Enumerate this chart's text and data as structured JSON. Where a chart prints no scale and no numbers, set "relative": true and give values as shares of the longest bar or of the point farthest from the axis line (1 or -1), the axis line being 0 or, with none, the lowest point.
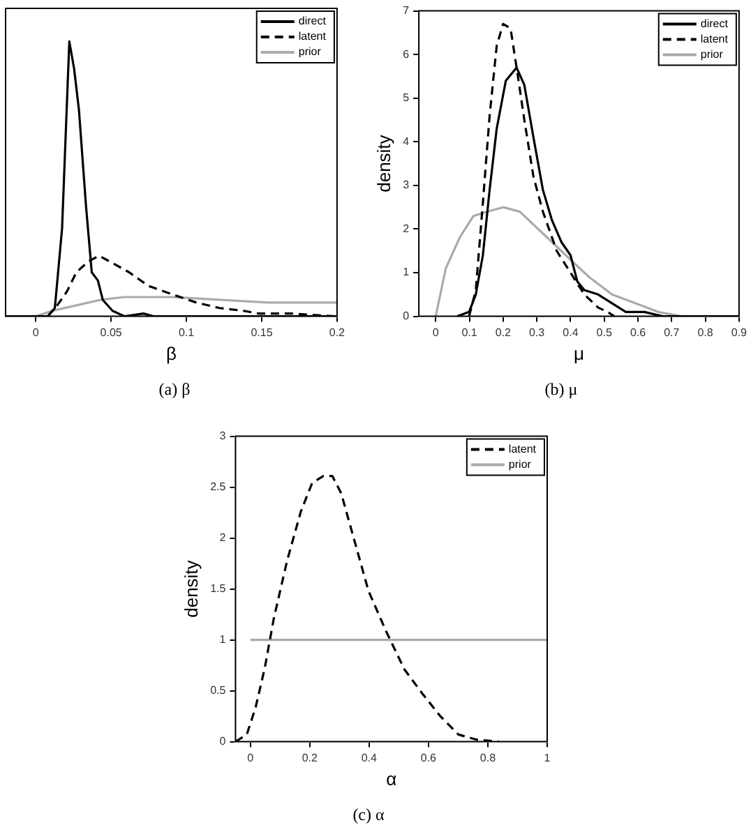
{
  "chart_data": [
    {
      "type": "line",
      "relative": true,
      "xlabel": "β",
      "annotations": [
        "(a) β"
      ],
      "legend": "top right",
      "marker": "none",
      "xlim": [
        -0.02,
        0.2
      ],
      "xticks": [
        0,
        0.05,
        0.1,
        0.15,
        0.2
      ],
      "series": [
        {
          "name": "direct",
          "color": "#000000",
          "line_style": "solid",
          "x": [
            -0.02,
            0.008,
            0.0127,
            0.0175,
            0.0223,
            0.0255,
            0.0287,
            0.0334,
            0.0372,
            0.0413,
            0.0445,
            0.051,
            0.059,
            0.0716,
            0.078,
            0.2
          ],
          "values": [
            0,
            0,
            0.03,
            0.32,
            1,
            0.9,
            0.75,
            0.4,
            0.16,
            0.13,
            0.06,
            0.02,
            0,
            0.01,
            0,
            0
          ]
        },
        {
          "name": "latent",
          "color": "#000000",
          "line_style": "dashed",
          "x": [
            0.008,
            0.0143,
            0.0207,
            0.027,
            0.035,
            0.042,
            0.049,
            0.062,
            0.075,
            0.0906,
            0.1066,
            0.122,
            0.138,
            0.148,
            0.17,
            0.199
          ],
          "values": [
            0,
            0.04,
            0.09,
            0.16,
            0.2,
            0.22,
            0.2,
            0.16,
            0.11,
            0.08,
            0.05,
            0.03,
            0.02,
            0.01,
            0.01,
            0
          ]
        },
        {
          "name": "prior",
          "color": "#aaaaaa",
          "line_style": "solid",
          "x": [
            0,
            0.011,
            0.027,
            0.043,
            0.059,
            0.0906,
            0.122,
            0.154,
            0.2
          ],
          "values": [
            0,
            0.02,
            0.04,
            0.06,
            0.07,
            0.07,
            0.06,
            0.05,
            0.05
          ]
        }
      ]
    },
    {
      "type": "line",
      "xlabel": "μ",
      "ylabel": "density",
      "annotations": [
        "(b) μ"
      ],
      "legend": "top right",
      "marker": "none",
      "xlim": [
        -0.05,
        0.9
      ],
      "xticks": [
        0,
        0.1,
        0.2,
        0.3,
        0.4,
        0.5,
        0.6,
        0.7,
        0.8,
        0.9
      ],
      "ylim": [
        0,
        7
      ],
      "yticks": [
        0,
        1,
        2,
        3,
        4,
        5,
        6,
        7
      ],
      "series": [
        {
          "name": "direct",
          "color": "#000000",
          "line_style": "solid",
          "x": [
            0.064,
            0.099,
            0.119,
            0.14,
            0.16,
            0.181,
            0.208,
            0.24,
            0.263,
            0.29,
            0.318,
            0.345,
            0.373,
            0.4,
            0.42,
            0.441,
            0.482,
            0.523,
            0.564,
            0.619,
            0.674,
            0.9
          ],
          "values": [
            0,
            0.1,
            0.5,
            1.4,
            2.9,
            4.3,
            5.4,
            5.7,
            5.3,
            4.1,
            2.9,
            2.2,
            1.7,
            1.4,
            0.8,
            0.6,
            0.5,
            0.3,
            0.1,
            0.1,
            0,
            0
          ]
        },
        {
          "name": "latent",
          "color": "#000000",
          "line_style": "dashed",
          "x": [
            0.099,
            0.119,
            0.14,
            0.16,
            0.181,
            0.2,
            0.222,
            0.242,
            0.263,
            0.29,
            0.318,
            0.359,
            0.4,
            0.441,
            0.482,
            0.51,
            0.53
          ],
          "values": [
            0,
            0.6,
            2.6,
            4.6,
            6.2,
            6.7,
            6.6,
            5.6,
            4.5,
            3.2,
            2.4,
            1.5,
            1,
            0.5,
            0.2,
            0.1,
            0
          ]
        },
        {
          "name": "prior",
          "color": "#aaaaaa",
          "line_style": "solid",
          "x": [
            0,
            0.03,
            0.071,
            0.112,
            0.153,
            0.2,
            0.249,
            0.318,
            0.386,
            0.455,
            0.523,
            0.592,
            0.66,
            0.729,
            0.8,
            0.9
          ],
          "values": [
            0,
            1.1,
            1.8,
            2.3,
            2.4,
            2.5,
            2.4,
            1.9,
            1.4,
            0.9,
            0.5,
            0.3,
            0.1,
            0,
            0,
            0
          ]
        }
      ]
    },
    {
      "type": "line",
      "xlabel": "α",
      "ylabel": "density",
      "annotations": [
        "(c) α"
      ],
      "legend": "top right",
      "marker": "none",
      "xlim": [
        -0.05,
        1
      ],
      "xticks": [
        0,
        0.2,
        0.4,
        0.6,
        0.8,
        1
      ],
      "ylim": [
        0,
        3
      ],
      "yticks": [
        0,
        0.5,
        1,
        1.5,
        2,
        2.5,
        3
      ],
      "series": [
        {
          "name": "latent",
          "color": "#000000",
          "line_style": "dashed",
          "x": [
            -0.05,
            -0.012,
            0.018,
            0.049,
            0.079,
            0.124,
            0.17,
            0.208,
            0.246,
            0.276,
            0.306,
            0.352,
            0.398,
            0.458,
            0.519,
            0.58,
            0.64,
            0.701,
            0.762,
            0.838
          ],
          "values": [
            0,
            0.07,
            0.34,
            0.73,
            1.21,
            1.78,
            2.26,
            2.54,
            2.61,
            2.61,
            2.44,
            1.96,
            1.48,
            1.08,
            0.71,
            0.47,
            0.25,
            0.07,
            0.02,
            0
          ]
        },
        {
          "name": "prior",
          "color": "#aaaaaa",
          "line_style": "solid",
          "x": [
            0,
            1
          ],
          "values": [
            1,
            1
          ]
        }
      ]
    }
  ]
}
